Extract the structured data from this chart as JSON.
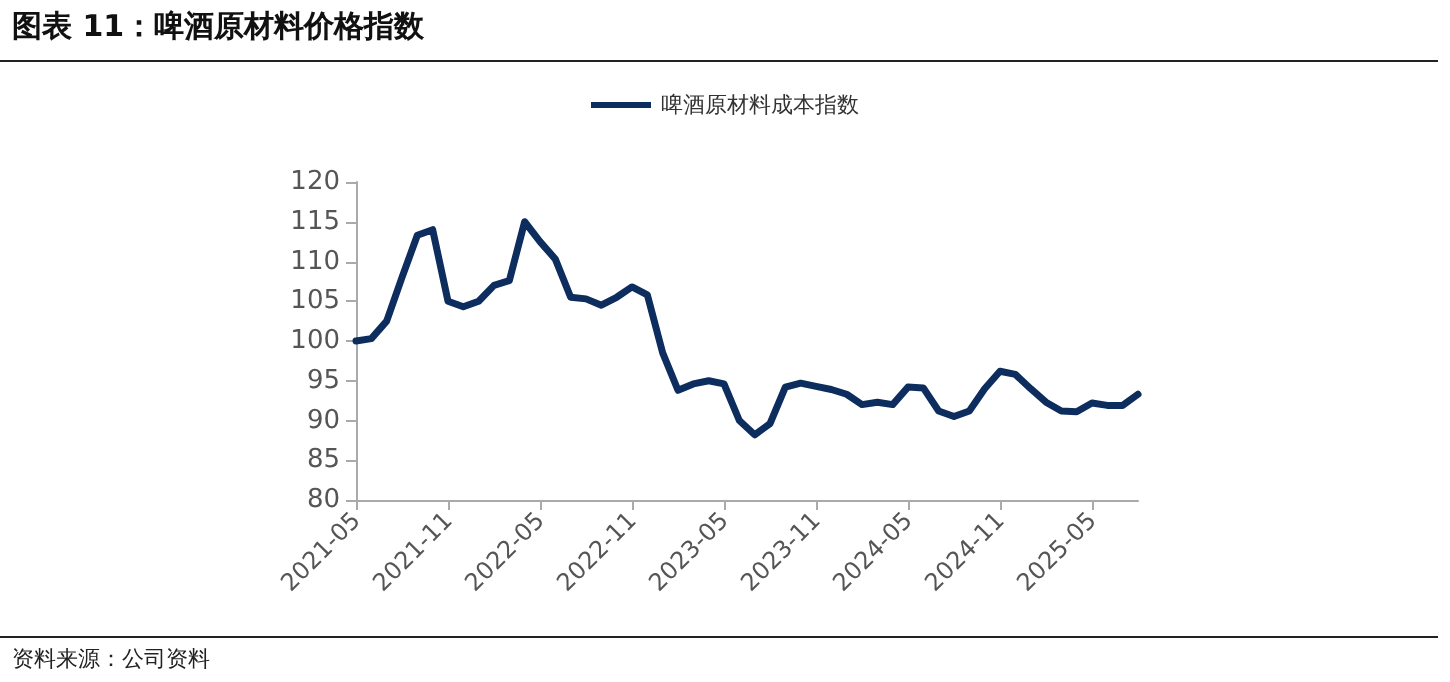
{
  "chart_data": {
    "type": "line",
    "title": "图表 11：啤酒原材料价格指数",
    "annotations": [
      "资料来源：公司资料"
    ],
    "categories": [
      "2021-05",
      null,
      null,
      null,
      null,
      null,
      "2021-11",
      null,
      null,
      null,
      null,
      null,
      "2022-05",
      null,
      null,
      null,
      null,
      null,
      "2022-11",
      null,
      null,
      null,
      null,
      null,
      "2023-05",
      null,
      null,
      null,
      null,
      null,
      "2023-11",
      null,
      null,
      null,
      null,
      null,
      "2024-05",
      null,
      null,
      null,
      null,
      null,
      "2024-11",
      null,
      null,
      null,
      null,
      null,
      "2025-05",
      null,
      null,
      null
    ],
    "series": [
      {
        "name": "啤酒原材料成本指数",
        "color": "#0c2d5e",
        "values": [
          100,
          100.3,
          102.5,
          108,
          113.3,
          114,
          105,
          104.3,
          105,
          107,
          107.6,
          115,
          112.5,
          110.3,
          105.5,
          105.3,
          104.5,
          105.5,
          106.8,
          105.8,
          98.5,
          93.8,
          94.6,
          95,
          94.6,
          90,
          88.2,
          89.6,
          94.2,
          94.7,
          94.3,
          93.9,
          93.3,
          92,
          92.3,
          92,
          94.2,
          94.1,
          91.2,
          90.5,
          91.2,
          94,
          96.2,
          95.8,
          94,
          92.3,
          91.2,
          91.1,
          92.2,
          91.9,
          91.9,
          93.3
        ]
      }
    ],
    "ylim": [
      80,
      120
    ],
    "yticks": [
      80,
      85,
      90,
      95,
      100,
      105,
      110,
      115,
      120
    ],
    "grid": false,
    "legend": "top",
    "marker": "none",
    "line_style": "solid"
  }
}
